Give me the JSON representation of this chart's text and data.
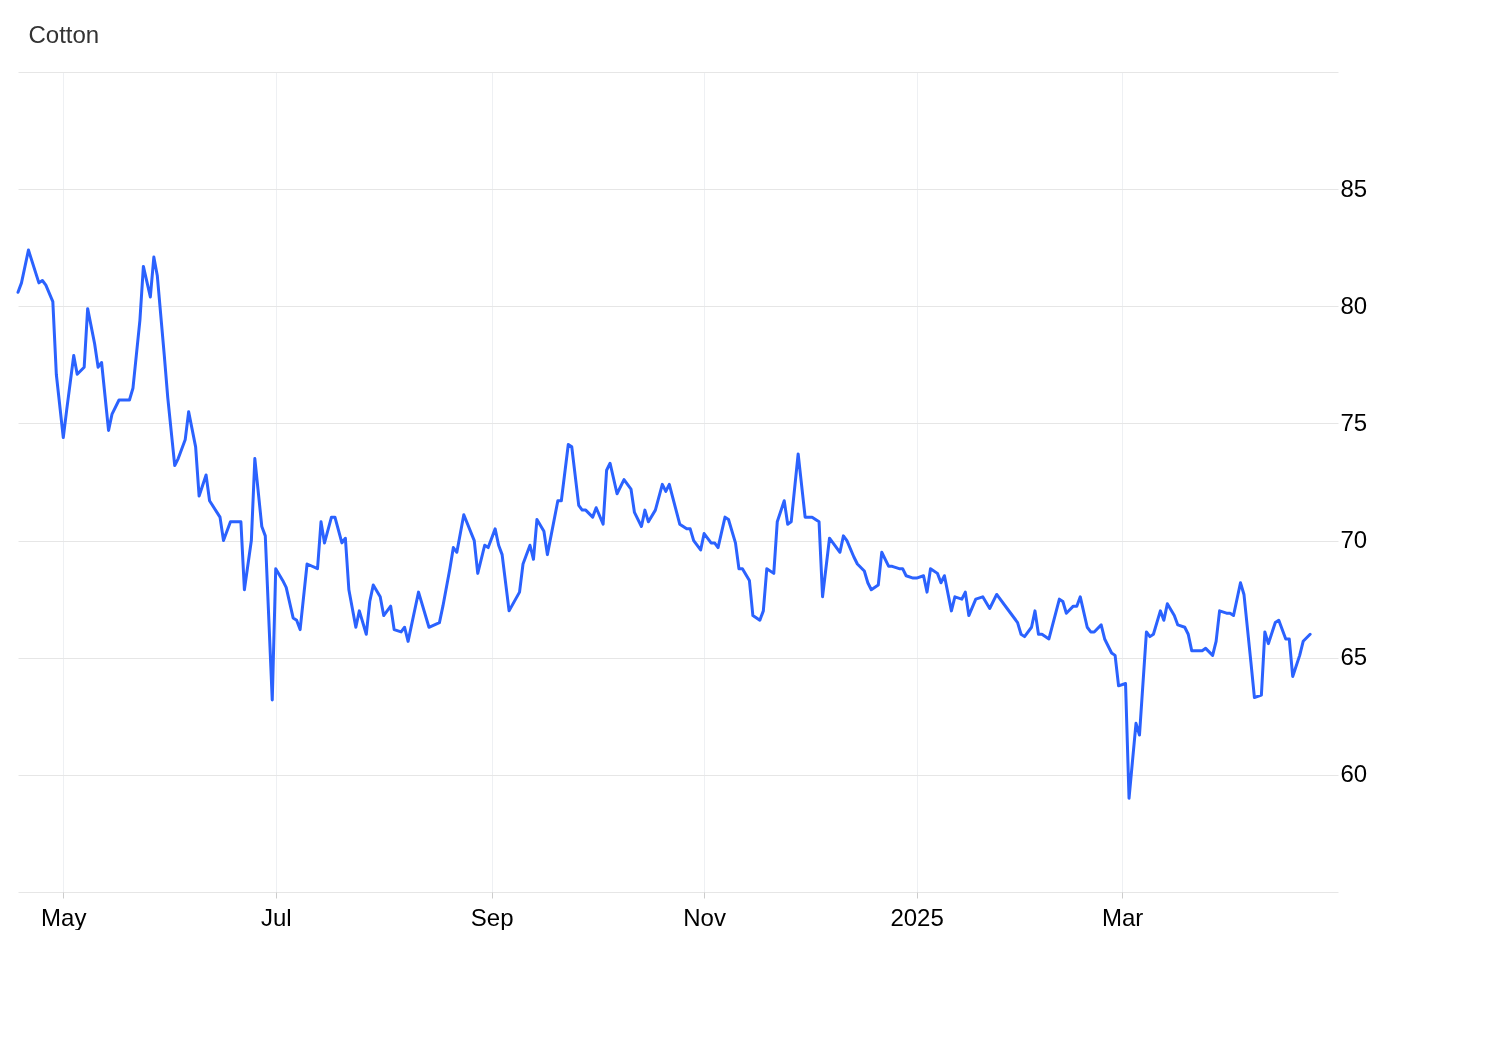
{
  "chart_data": {
    "type": "line",
    "title": "Cotton",
    "x": [
      "2024-04-18",
      "2024-04-19",
      "2024-04-21",
      "2024-04-24",
      "2024-04-25",
      "2024-04-26",
      "2024-04-28",
      "2024-04-29",
      "2024-05-01",
      "2024-05-02",
      "2024-05-04",
      "2024-05-05",
      "2024-05-07",
      "2024-05-08",
      "2024-05-10",
      "2024-05-11",
      "2024-05-12",
      "2024-05-14",
      "2024-05-15",
      "2024-05-17",
      "2024-05-20",
      "2024-05-21",
      "2024-05-23",
      "2024-05-24",
      "2024-05-26",
      "2024-05-27",
      "2024-05-28",
      "2024-05-30",
      "2024-05-31",
      "2024-06-02",
      "2024-06-03",
      "2024-06-05",
      "2024-06-06",
      "2024-06-08",
      "2024-06-09",
      "2024-06-11",
      "2024-06-12",
      "2024-06-15",
      "2024-06-16",
      "2024-06-18",
      "2024-06-21",
      "2024-06-22",
      "2024-06-24",
      "2024-06-25",
      "2024-06-27",
      "2024-06-28",
      "2024-06-30",
      "2024-07-01",
      "2024-07-03",
      "2024-07-04",
      "2024-07-06",
      "2024-07-07",
      "2024-07-08",
      "2024-07-10",
      "2024-07-13",
      "2024-07-14",
      "2024-07-15",
      "2024-07-17",
      "2024-07-18",
      "2024-07-20",
      "2024-07-21",
      "2024-07-22",
      "2024-07-24",
      "2024-07-25",
      "2024-07-27",
      "2024-07-28",
      "2024-07-29",
      "2024-07-31",
      "2024-08-01",
      "2024-08-03",
      "2024-08-04",
      "2024-08-06",
      "2024-08-07",
      "2024-08-08",
      "2024-08-10",
      "2024-08-11",
      "2024-08-14",
      "2024-08-17",
      "2024-08-18",
      "2024-08-20",
      "2024-08-21",
      "2024-08-22",
      "2024-08-24",
      "2024-08-27",
      "2024-08-28",
      "2024-08-30",
      "2024-08-31",
      "2024-09-02",
      "2024-09-03",
      "2024-09-04",
      "2024-09-06",
      "2024-09-09",
      "2024-09-10",
      "2024-09-12",
      "2024-09-13",
      "2024-09-14",
      "2024-09-16",
      "2024-09-17",
      "2024-09-20",
      "2024-09-21",
      "2024-09-23",
      "2024-09-24",
      "2024-09-26",
      "2024-09-27",
      "2024-09-28",
      "2024-09-30",
      "2024-10-01",
      "2024-10-03",
      "2024-10-04",
      "2024-10-05",
      "2024-10-07",
      "2024-10-09",
      "2024-10-11",
      "2024-10-12",
      "2024-10-14",
      "2024-10-15",
      "2024-10-16",
      "2024-10-18",
      "2024-10-20",
      "2024-10-21",
      "2024-10-22",
      "2024-10-25",
      "2024-10-27",
      "2024-10-28",
      "2024-10-29",
      "2024-10-31",
      "2024-11-01",
      "2024-11-03",
      "2024-11-04",
      "2024-11-05",
      "2024-11-07",
      "2024-11-08",
      "2024-11-10",
      "2024-11-11",
      "2024-11-12",
      "2024-11-14",
      "2024-11-15",
      "2024-11-17",
      "2024-11-18",
      "2024-11-19",
      "2024-11-21",
      "2024-11-22",
      "2024-11-24",
      "2024-11-25",
      "2024-11-26",
      "2024-11-28",
      "2024-11-30",
      "2024-12-01",
      "2024-12-02",
      "2024-12-04",
      "2024-12-05",
      "2024-12-07",
      "2024-12-08",
      "2024-12-10",
      "2024-12-11",
      "2024-12-12",
      "2024-12-14",
      "2024-12-15",
      "2024-12-17",
      "2024-12-18",
      "2024-12-19",
      "2024-12-21",
      "2024-12-22",
      "2024-12-24",
      "2024-12-25",
      "2024-12-27",
      "2024-12-28",
      "2024-12-29",
      "2024-12-31",
      "2025-01-01",
      "2025-01-03",
      "2025-01-04",
      "2025-01-05",
      "2025-01-07",
      "2025-01-08",
      "2025-01-09",
      "2025-01-11",
      "2025-01-12",
      "2025-01-14",
      "2025-01-15",
      "2025-01-16",
      "2025-01-18",
      "2025-01-20",
      "2025-01-22",
      "2025-01-24",
      "2025-01-27",
      "2025-01-30",
      "2025-01-31",
      "2025-02-01",
      "2025-02-03",
      "2025-02-04",
      "2025-02-05",
      "2025-02-06",
      "2025-02-08",
      "2025-02-11",
      "2025-02-12",
      "2025-02-13",
      "2025-02-15",
      "2025-02-16",
      "2025-02-17",
      "2025-02-19",
      "2025-02-20",
      "2025-02-21",
      "2025-02-23",
      "2025-02-24",
      "2025-02-26",
      "2025-02-27",
      "2025-02-28",
      "2025-03-02",
      "2025-03-03",
      "2025-03-05",
      "2025-03-06",
      "2025-03-08",
      "2025-03-09",
      "2025-03-10",
      "2025-03-12",
      "2025-03-13",
      "2025-03-14",
      "2025-03-16",
      "2025-03-17",
      "2025-03-19",
      "2025-03-20",
      "2025-03-21",
      "2025-03-24",
      "2025-03-25",
      "2025-03-27",
      "2025-03-28",
      "2025-03-29",
      "2025-03-31",
      "2025-04-01",
      "2025-04-02",
      "2025-04-04",
      "2025-04-05",
      "2025-04-07",
      "2025-04-08",
      "2025-04-10",
      "2025-04-11",
      "2025-04-12",
      "2025-04-14",
      "2025-04-15",
      "2025-04-17",
      "2025-04-18",
      "2025-04-19",
      "2025-04-21",
      "2025-04-22",
      "2025-04-24"
    ],
    "series": [
      {
        "color": "#2b62fe",
        "values": [
          80.6,
          81.0,
          82.4,
          81.0,
          81.1,
          80.9,
          80.2,
          77.1,
          74.4,
          75.6,
          77.9,
          77.1,
          77.4,
          79.9,
          78.4,
          77.4,
          77.6,
          74.7,
          75.4,
          76.0,
          76.0,
          76.5,
          79.4,
          81.7,
          80.4,
          82.1,
          81.3,
          77.9,
          76.1,
          73.2,
          73.5,
          74.3,
          75.5,
          74.0,
          71.9,
          72.8,
          71.7,
          71.0,
          70.0,
          70.8,
          70.8,
          67.9,
          70.0,
          73.5,
          70.6,
          70.2,
          63.2,
          68.8,
          68.3,
          68.0,
          66.7,
          66.6,
          66.2,
          69.0,
          68.8,
          70.8,
          69.9,
          71.0,
          71.0,
          69.9,
          70.1,
          67.9,
          66.3,
          67.0,
          66.0,
          67.4,
          68.1,
          67.6,
          66.8,
          67.2,
          66.2,
          66.1,
          66.3,
          65.7,
          67.1,
          67.8,
          66.3,
          66.5,
          67.2,
          68.8,
          69.7,
          69.5,
          71.1,
          70.0,
          68.6,
          69.8,
          69.7,
          70.5,
          69.8,
          69.4,
          67.0,
          67.8,
          69.0,
          69.8,
          69.2,
          70.9,
          70.4,
          69.4,
          71.7,
          71.7,
          74.1,
          74.0,
          71.5,
          71.3,
          71.3,
          71.0,
          71.4,
          70.7,
          73.0,
          73.3,
          72.0,
          72.6,
          72.2,
          71.2,
          70.6,
          71.3,
          70.8,
          71.3,
          72.4,
          72.1,
          72.4,
          70.7,
          70.5,
          70.5,
          70.0,
          69.6,
          70.3,
          69.9,
          69.9,
          69.7,
          71.0,
          70.9,
          69.9,
          68.8,
          68.8,
          68.3,
          66.8,
          66.6,
          67.0,
          68.8,
          68.6,
          70.8,
          71.7,
          70.7,
          70.8,
          73.7,
          71.0,
          71.0,
          71.0,
          70.8,
          67.6,
          70.1,
          69.9,
          69.5,
          70.2,
          70.0,
          69.3,
          69.0,
          68.7,
          68.2,
          67.9,
          68.1,
          69.5,
          68.9,
          68.9,
          68.8,
          68.8,
          68.5,
          68.4,
          68.4,
          68.5,
          67.8,
          68.8,
          68.6,
          68.2,
          68.5,
          67.0,
          67.6,
          67.5,
          67.8,
          66.8,
          67.5,
          67.6,
          67.1,
          67.7,
          67.1,
          66.5,
          66.0,
          65.9,
          66.3,
          67.0,
          66.0,
          66.0,
          65.8,
          67.5,
          67.4,
          66.9,
          67.2,
          67.2,
          67.6,
          66.3,
          66.1,
          66.1,
          66.4,
          65.8,
          65.2,
          65.1,
          63.8,
          63.9,
          59.0,
          62.2,
          61.7,
          66.1,
          65.9,
          66.0,
          67.0,
          66.6,
          67.3,
          66.8,
          66.4,
          66.3,
          66.0,
          65.3,
          65.3,
          65.4,
          65.1,
          65.7,
          67.0,
          66.9,
          66.9,
          66.8,
          68.2,
          67.7,
          64.8,
          63.3,
          63.4,
          66.1,
          65.6,
          66.5,
          66.6,
          65.8,
          65.8,
          64.2,
          65.1,
          65.7,
          66.0
        ]
      }
    ],
    "xlim": [
      "2024-04-18",
      "2025-05-02"
    ],
    "xticks": [
      {
        "value": "2024-05-01",
        "label": "May"
      },
      {
        "value": "2024-07-01",
        "label": "Jul"
      },
      {
        "value": "2024-09-01",
        "label": "Sep"
      },
      {
        "value": "2024-11-01",
        "label": "Nov"
      },
      {
        "value": "2025-01-01",
        "label": "2025"
      },
      {
        "value": "2025-03-01",
        "label": "Mar"
      }
    ],
    "ylim": [
      55,
      90
    ],
    "yticks": [
      {
        "value": 55,
        "label": null
      },
      60,
      65,
      70,
      75,
      80,
      85,
      {
        "value": 90,
        "label": null
      }
    ],
    "grid": true,
    "legend": false,
    "marker": "none",
    "line_style": "solid"
  }
}
